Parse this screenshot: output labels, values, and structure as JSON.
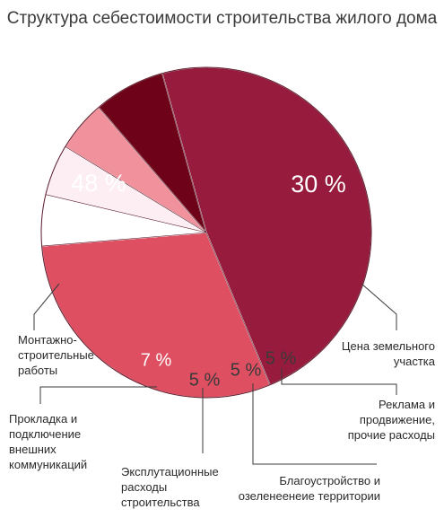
{
  "chart_data": {
    "type": "pie",
    "title": "Структура себестоимости строительства жилого дома",
    "slices": [
      {
        "label": "Монтажно-\nстроительные\nработы",
        "value": 48,
        "value_label": "48 %",
        "color": "#961b3d"
      },
      {
        "label": "Цена земельного\nучастка",
        "value": 30,
        "value_label": "30 %",
        "color": "#dd4f61"
      },
      {
        "label": "Реклама и\nпродвижение,\nпрочие расходы",
        "value": 5,
        "value_label": "5 %",
        "color": "#ffffff"
      },
      {
        "label": "Благоустройство и\nозеленеенеие территории",
        "value": 5,
        "value_label": "5 %",
        "color": "#fdeef4"
      },
      {
        "label": "Эксплутационные\nрасходы\nстроительства",
        "value": 5,
        "value_label": "5 %",
        "color": "#f0919b"
      },
      {
        "label": "Прокладка и\nподключение\nвнешних\nкоммуникаций",
        "value": 7,
        "value_label": "7 %",
        "color": "#6d0218"
      }
    ]
  }
}
